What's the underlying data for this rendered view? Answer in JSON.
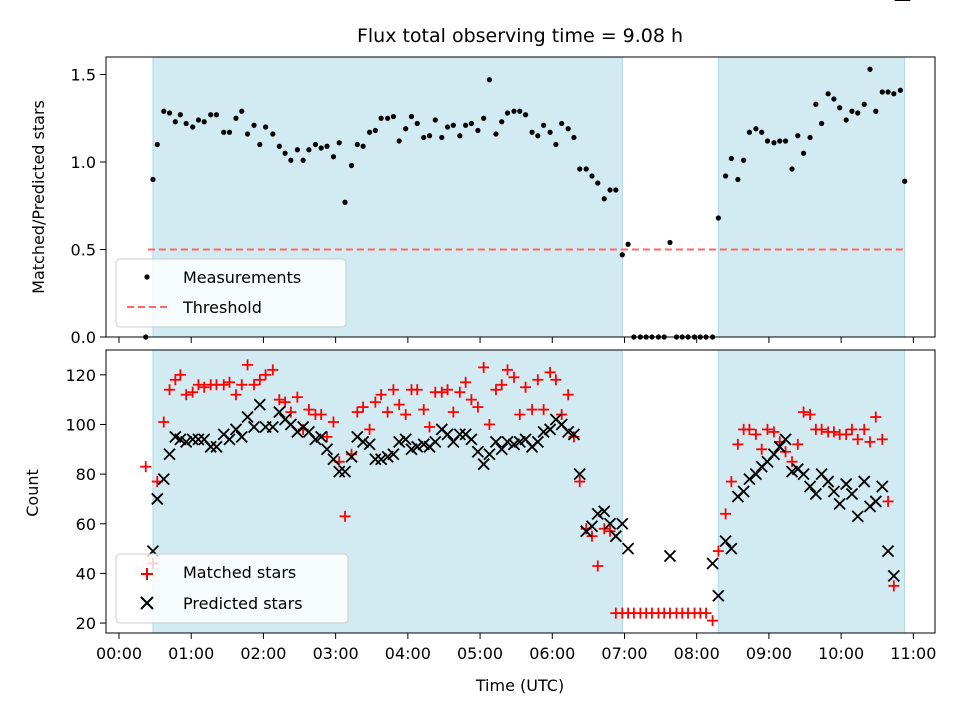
{
  "title": "Flux total observing time = 9.08 h",
  "colors": {
    "shade": "#add8e6",
    "measurement": "#000000",
    "threshold": "#ff6666",
    "matched": "#ff0000",
    "predicted": "#000000"
  },
  "chart_data": [
    {
      "type": "scatter",
      "ylabel": "Matched/Predicted stars",
      "ylim": [
        0,
        1.6
      ],
      "yticks": [
        "0.0",
        "0.5",
        "1.0",
        "1.5"
      ],
      "legend_position": "lower-left",
      "shaded_intervals_utc_hours": [
        [
          0.47,
          6.97
        ],
        [
          8.3,
          10.88
        ]
      ],
      "threshold": {
        "name": "Threshold",
        "value": 0.5,
        "x_range_utc_hours": [
          0.4,
          10.88
        ]
      },
      "series": [
        {
          "name": "Measurements",
          "x_utc_hours": [
            0.37,
            0.47,
            0.53,
            0.62,
            0.7,
            0.78,
            0.85,
            0.93,
            1.02,
            1.1,
            1.18,
            1.27,
            1.35,
            1.45,
            1.53,
            1.62,
            1.7,
            1.78,
            1.87,
            1.95,
            2.03,
            2.13,
            2.22,
            2.3,
            2.38,
            2.47,
            2.55,
            2.63,
            2.72,
            2.8,
            2.88,
            2.97,
            3.05,
            3.13,
            3.22,
            3.3,
            3.38,
            3.47,
            3.55,
            3.63,
            3.72,
            3.8,
            3.88,
            3.97,
            4.05,
            4.13,
            4.22,
            4.3,
            4.38,
            4.47,
            4.55,
            4.63,
            4.72,
            4.8,
            4.88,
            4.97,
            5.05,
            5.13,
            5.22,
            5.3,
            5.38,
            5.47,
            5.55,
            5.63,
            5.72,
            5.8,
            5.88,
            5.97,
            6.05,
            6.13,
            6.22,
            6.3,
            6.38,
            6.47,
            6.55,
            6.63,
            6.72,
            6.8,
            6.88,
            6.97,
            7.05,
            7.13,
            7.22,
            7.3,
            7.38,
            7.47,
            7.55,
            7.63,
            7.72,
            7.8,
            7.88,
            7.97,
            8.05,
            8.13,
            8.22,
            8.3,
            8.4,
            8.48,
            8.57,
            8.65,
            8.73,
            8.82,
            8.9,
            8.98,
            9.07,
            9.15,
            9.23,
            9.32,
            9.4,
            9.48,
            9.57,
            9.65,
            9.73,
            9.82,
            9.9,
            9.98,
            10.07,
            10.15,
            10.23,
            10.32,
            10.4,
            10.48,
            10.57,
            10.65,
            10.73,
            10.82,
            10.88
          ],
          "y": [
            0.0,
            0.9,
            1.1,
            1.29,
            1.28,
            1.23,
            1.27,
            1.22,
            1.2,
            1.24,
            1.23,
            1.27,
            1.27,
            1.17,
            1.17,
            1.25,
            1.29,
            1.16,
            1.21,
            1.1,
            1.2,
            1.16,
            1.09,
            1.05,
            1.01,
            1.07,
            1.01,
            1.07,
            1.1,
            1.08,
            1.09,
            1.03,
            1.11,
            0.77,
            0.98,
            1.1,
            1.09,
            1.17,
            1.18,
            1.25,
            1.25,
            1.26,
            1.12,
            1.19,
            1.26,
            1.22,
            1.14,
            1.15,
            1.24,
            1.14,
            1.2,
            1.21,
            1.15,
            1.21,
            1.22,
            1.18,
            1.25,
            1.47,
            1.16,
            1.23,
            1.28,
            1.29,
            1.29,
            1.27,
            1.17,
            1.15,
            1.21,
            1.17,
            1.1,
            1.22,
            1.19,
            1.14,
            0.96,
            0.96,
            0.92,
            0.88,
            0.79,
            0.84,
            0.84,
            0.47,
            0.53,
            0.0,
            0.0,
            0.0,
            0.0,
            0.0,
            0.0,
            0.54,
            0.0,
            0.0,
            0.0,
            0.0,
            0.0,
            0.0,
            0.0,
            0.68,
            0.92,
            1.02,
            0.9,
            1.01,
            1.17,
            1.19,
            1.17,
            1.12,
            1.11,
            1.12,
            1.12,
            0.96,
            1.15,
            1.05,
            1.14,
            1.33,
            1.22,
            1.39,
            1.36,
            1.31,
            1.24,
            1.29,
            1.28,
            1.33,
            1.53,
            1.29,
            1.4,
            1.4,
            1.39,
            1.41,
            0.89
          ]
        }
      ]
    },
    {
      "type": "scatter",
      "xlabel": "Time (UTC)",
      "ylabel": "Count",
      "ylim": [
        16,
        130
      ],
      "yticks": [
        "20",
        "40",
        "60",
        "80",
        "100",
        "120"
      ],
      "xlim_utc_hours": [
        -0.18,
        11.3
      ],
      "xticks": [
        "00:00",
        "01:00",
        "02:00",
        "03:00",
        "04:00",
        "05:00",
        "06:00",
        "07:00",
        "08:00",
        "09:00",
        "10:00",
        "11:00"
      ],
      "legend_position": "lower-left",
      "shaded_intervals_utc_hours": [
        [
          0.47,
          6.97
        ],
        [
          8.3,
          10.88
        ]
      ],
      "series": [
        {
          "name": "Matched stars",
          "x_utc_hours": [
            0.37,
            0.47,
            0.53,
            0.62,
            0.7,
            0.78,
            0.85,
            0.93,
            1.02,
            1.1,
            1.18,
            1.27,
            1.35,
            1.45,
            1.53,
            1.62,
            1.7,
            1.78,
            1.87,
            1.95,
            2.03,
            2.13,
            2.22,
            2.3,
            2.38,
            2.47,
            2.55,
            2.63,
            2.72,
            2.8,
            2.88,
            2.97,
            3.05,
            3.13,
            3.22,
            3.3,
            3.38,
            3.47,
            3.55,
            3.63,
            3.72,
            3.8,
            3.88,
            3.97,
            4.05,
            4.13,
            4.22,
            4.3,
            4.38,
            4.47,
            4.55,
            4.63,
            4.72,
            4.8,
            4.88,
            4.97,
            5.05,
            5.13,
            5.22,
            5.3,
            5.38,
            5.47,
            5.55,
            5.63,
            5.72,
            5.8,
            5.88,
            5.97,
            6.05,
            6.13,
            6.22,
            6.3,
            6.38,
            6.47,
            6.55,
            6.63,
            6.72,
            6.8,
            6.88,
            6.97,
            7.05,
            7.13,
            7.22,
            7.3,
            7.38,
            7.47,
            7.55,
            7.63,
            7.72,
            7.8,
            7.88,
            7.97,
            8.05,
            8.13,
            8.22,
            8.3,
            8.4,
            8.48,
            8.57,
            8.65,
            8.73,
            8.82,
            8.9,
            8.98,
            9.07,
            9.15,
            9.23,
            9.32,
            9.4,
            9.48,
            9.57,
            9.65,
            9.73,
            9.82,
            9.9,
            9.98,
            10.07,
            10.15,
            10.23,
            10.32,
            10.4,
            10.48,
            10.57,
            10.65,
            10.73,
            10.82,
            10.88
          ],
          "y": [
            83,
            44,
            77,
            101,
            114,
            118,
            120,
            112,
            113,
            116,
            115,
            116,
            116,
            116,
            117,
            112,
            116,
            124,
            116,
            118,
            120,
            122,
            110,
            109,
            105,
            111,
            98,
            106,
            104,
            104,
            95,
            101,
            85,
            63,
            88,
            105,
            107,
            98,
            109,
            112,
            105,
            114,
            108,
            104,
            114,
            114,
            106,
            99,
            113,
            113,
            114,
            105,
            113,
            117,
            110,
            107,
            123,
            100,
            114,
            116,
            122,
            119,
            104,
            115,
            106,
            118,
            106,
            121,
            118,
            104,
            112,
            95,
            77,
            58,
            55,
            43,
            58,
            57,
            24,
            24,
            24,
            24,
            24,
            24,
            24,
            24,
            24,
            24,
            24,
            24,
            24,
            24,
            24,
            24,
            21,
            49,
            64,
            77,
            92,
            98,
            98,
            96,
            90,
            98,
            97,
            93,
            89,
            85,
            92,
            105,
            104,
            98,
            98,
            97,
            97,
            96,
            96,
            98,
            94,
            98,
            93,
            103,
            94,
            69,
            35
          ],
          "markers_shown_only_approximately": true
        },
        {
          "name": "Predicted stars",
          "x_utc_hours": [
            0.47,
            0.53,
            0.62,
            0.7,
            0.78,
            0.85,
            0.93,
            1.02,
            1.1,
            1.18,
            1.27,
            1.35,
            1.45,
            1.53,
            1.62,
            1.7,
            1.78,
            1.87,
            1.95,
            2.03,
            2.13,
            2.22,
            2.3,
            2.38,
            2.47,
            2.55,
            2.63,
            2.72,
            2.8,
            2.88,
            2.97,
            3.05,
            3.13,
            3.22,
            3.3,
            3.38,
            3.47,
            3.55,
            3.63,
            3.72,
            3.8,
            3.88,
            3.97,
            4.05,
            4.13,
            4.22,
            4.3,
            4.38,
            4.47,
            4.55,
            4.63,
            4.72,
            4.8,
            4.88,
            4.97,
            5.05,
            5.13,
            5.22,
            5.3,
            5.38,
            5.47,
            5.55,
            5.63,
            5.72,
            5.8,
            5.88,
            5.97,
            6.05,
            6.13,
            6.22,
            6.3,
            6.38,
            6.47,
            6.55,
            6.63,
            6.72,
            6.8,
            6.88,
            6.97,
            7.05,
            7.63,
            8.22,
            8.3,
            8.4,
            8.48,
            8.57,
            8.65,
            8.73,
            8.82,
            8.9,
            8.98,
            9.07,
            9.15,
            9.23,
            9.32,
            9.4,
            9.48,
            9.57,
            9.65,
            9.73,
            9.82,
            9.9,
            9.98,
            10.07,
            10.15,
            10.23,
            10.32,
            10.4,
            10.48,
            10.57,
            10.65,
            10.73,
            10.82,
            10.88
          ],
          "y": [
            49,
            70,
            78,
            88,
            95,
            94,
            93,
            94,
            94,
            94,
            91,
            91,
            96,
            94,
            98,
            95,
            103,
            99,
            108,
            99,
            99,
            105,
            102,
            100,
            97,
            99,
            97,
            94,
            95,
            90,
            86,
            81,
            81,
            87,
            95,
            93,
            92,
            86,
            86,
            87,
            88,
            93,
            94,
            90,
            91,
            92,
            91,
            93,
            98,
            96,
            93,
            96,
            96,
            94,
            89,
            84,
            88,
            93,
            90,
            93,
            92,
            93,
            94,
            91,
            93,
            97,
            98,
            102,
            100,
            97,
            96,
            80,
            57,
            59,
            64,
            65,
            60,
            55,
            60,
            50,
            47,
            44,
            31,
            53,
            50,
            71,
            73,
            78,
            80,
            83,
            85,
            88,
            91,
            94,
            81,
            82,
            80,
            75,
            72,
            80,
            77,
            73,
            68,
            76,
            72,
            63,
            77,
            67,
            69,
            75,
            49,
            39
          ],
          "markers_shown_only_approximately": true
        }
      ]
    }
  ]
}
